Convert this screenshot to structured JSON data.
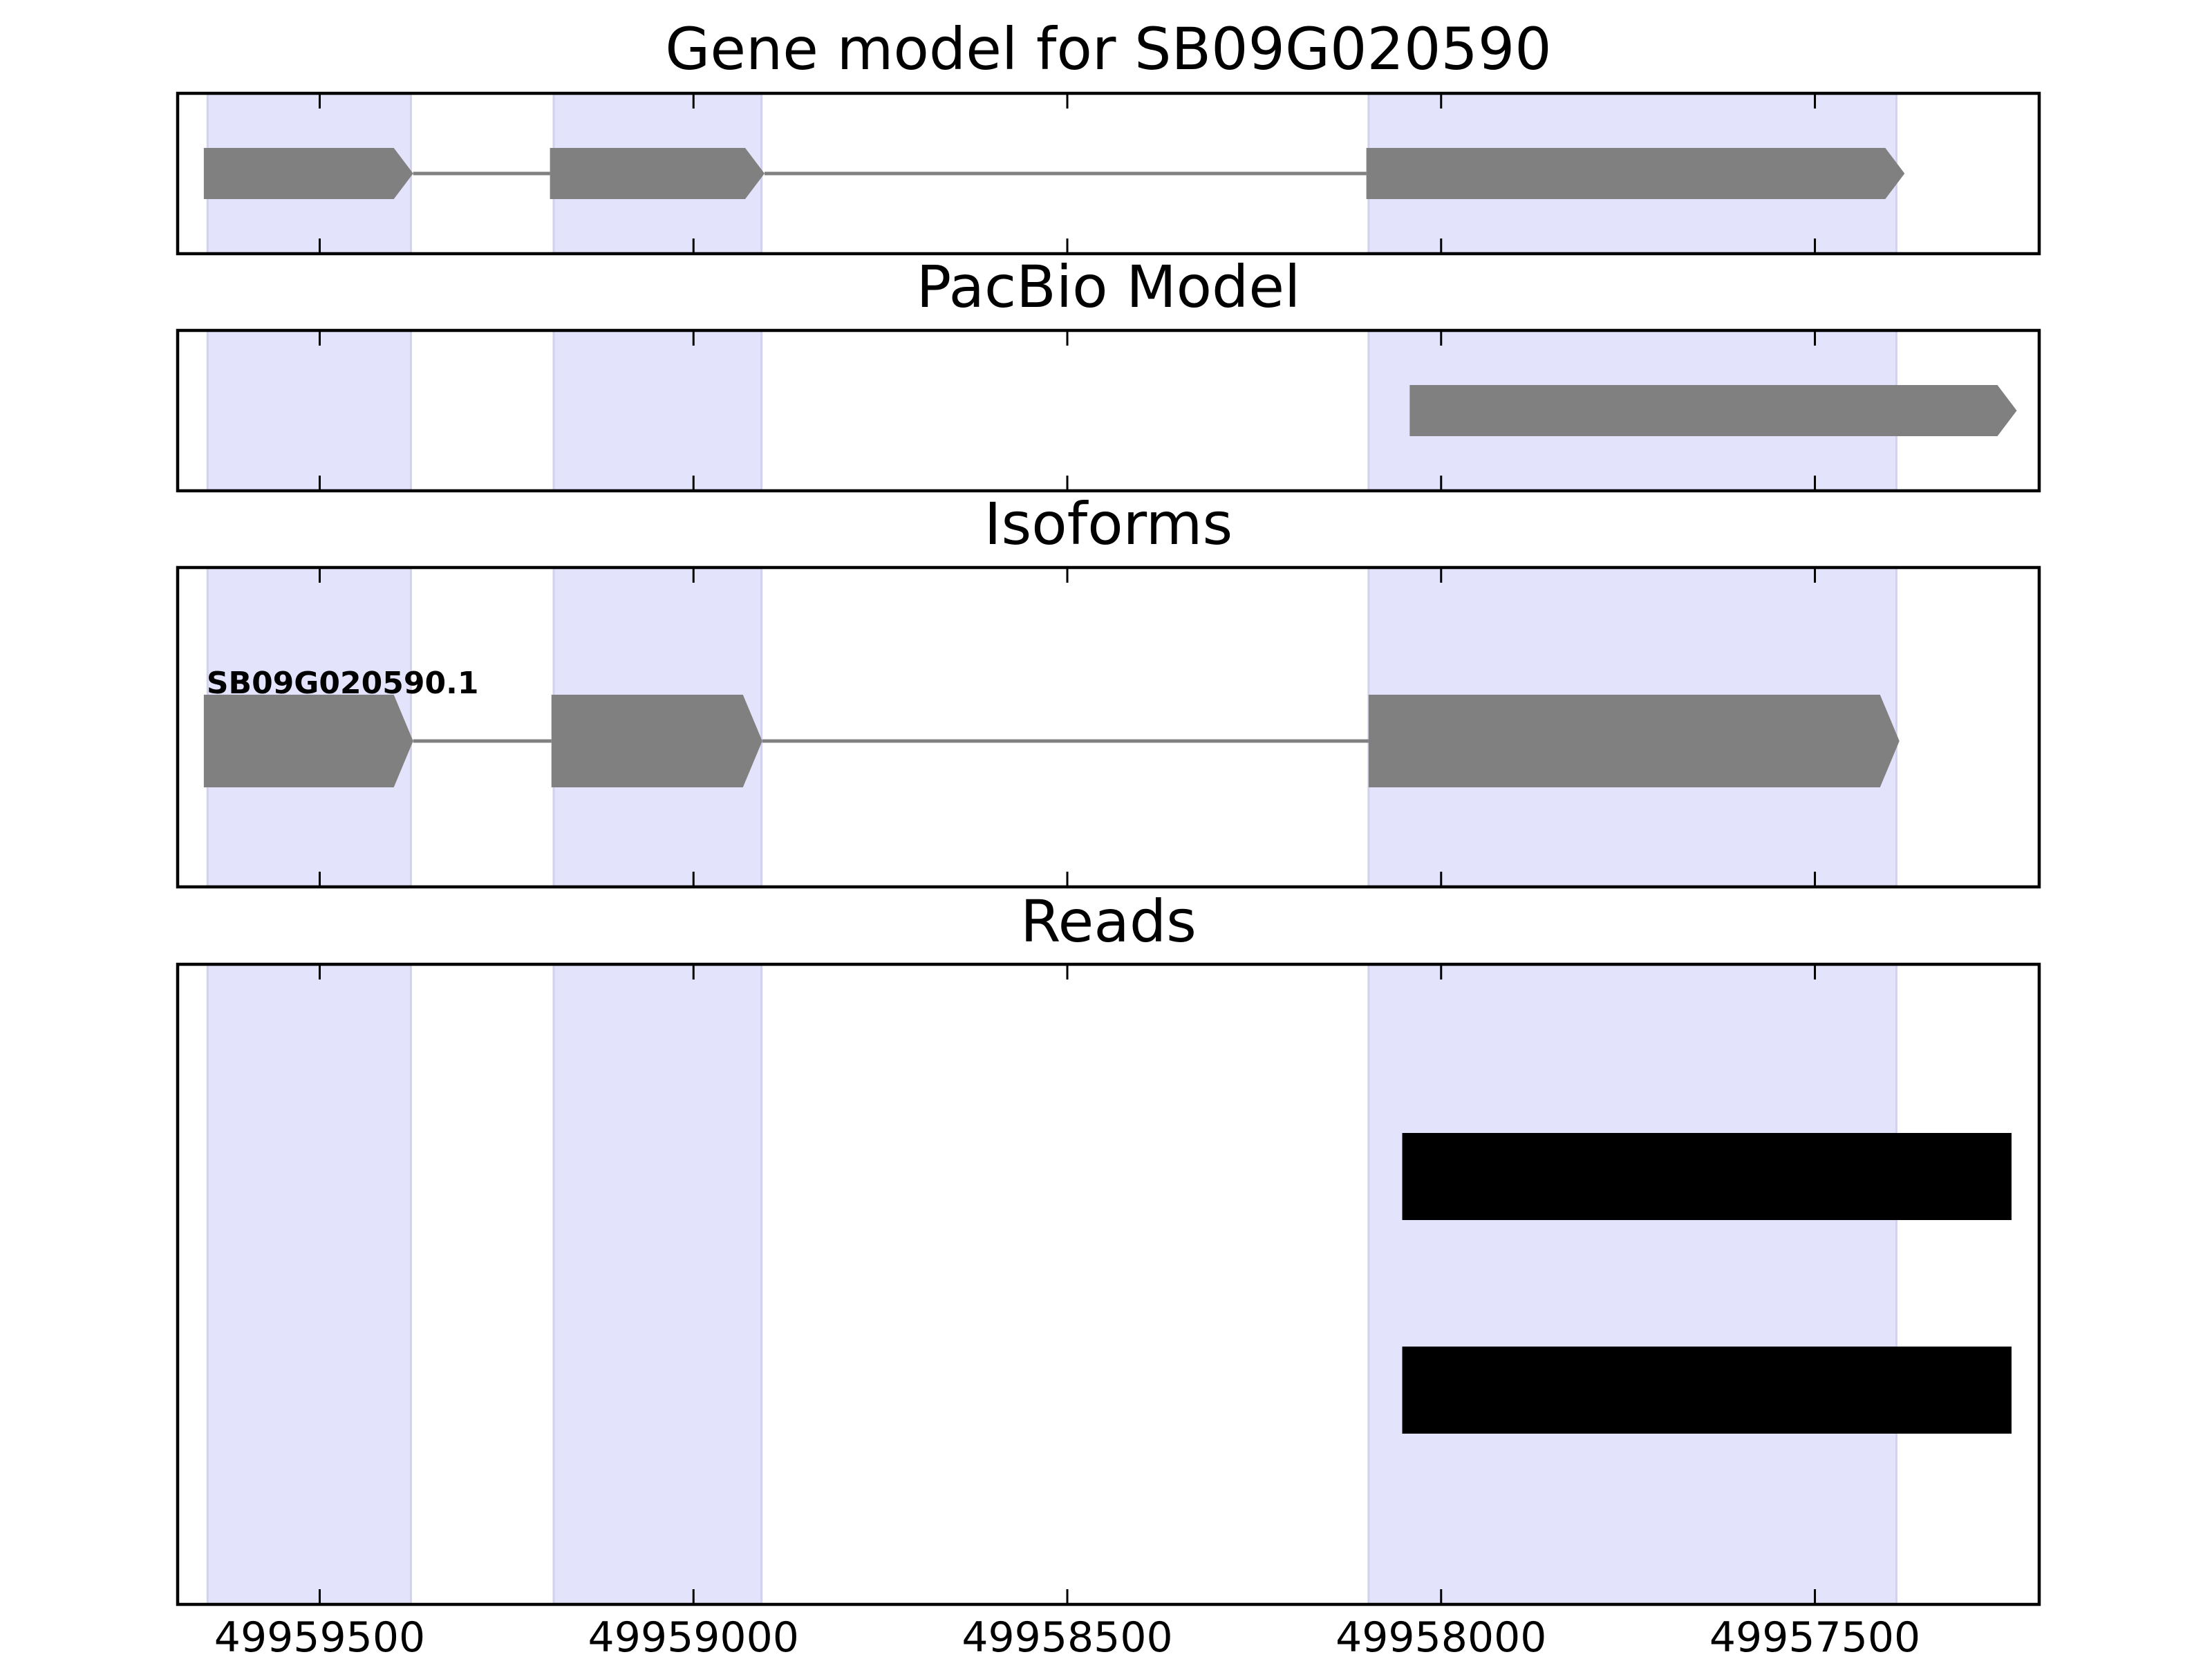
{
  "chart_data": {
    "type": "gene-track",
    "x_axis": {
      "reversed": true,
      "xlim": [
        49959690,
        49957200
      ],
      "ticks": [
        49959500,
        49959000,
        49958500,
        49958000,
        49957500
      ],
      "tick_labels": [
        "49959500",
        "49959000",
        "49958500",
        "49958000",
        "49957500"
      ]
    },
    "highlight_color": "#e3e3fc",
    "highlight_regions": [
      [
        49959650,
        49959378
      ],
      [
        49959187,
        49958909
      ],
      [
        49958097,
        49957391
      ]
    ],
    "panels": [
      {
        "title": "Gene model for SB09G020590",
        "feature_color": "#808080",
        "exons": [
          [
            49959655,
            49959375
          ],
          [
            49959192,
            49958905
          ],
          [
            49958100,
            49957380
          ]
        ],
        "isoform_label": ""
      },
      {
        "title": "PacBio Model",
        "feature_color": "#808080",
        "exons": [
          [
            49958042,
            49957230
          ]
        ],
        "isoform_label": ""
      },
      {
        "title": "Isoforms",
        "feature_color": "#808080",
        "exons": [
          [
            49959655,
            49959375
          ],
          [
            49959190,
            49958908
          ],
          [
            49958097,
            49957387
          ]
        ],
        "isoform_label": "SB09G020590.1"
      },
      {
        "title": "Reads",
        "feature_color": "#000000",
        "reads": [
          [
            49958052,
            49957237
          ],
          [
            49958052,
            49957237
          ]
        ]
      }
    ]
  }
}
